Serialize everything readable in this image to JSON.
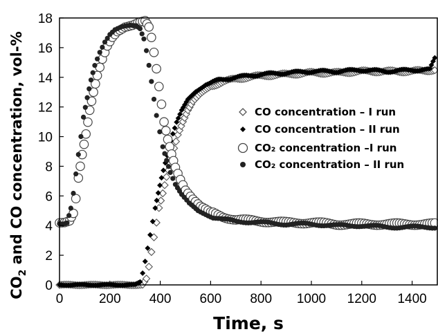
{
  "chart_data": {
    "type": "scatter",
    "title": "",
    "xlabel": "Time, s",
    "ylabel_main": "CO",
    "ylabel_sub": "2",
    "ylabel_rest": " and CO concentration, vol-%",
    "xlim": [
      0,
      1500
    ],
    "ylim": [
      0,
      18
    ],
    "xticks": [
      "0",
      "200",
      "400",
      "600",
      "800",
      "1000",
      "1200",
      "1400"
    ],
    "yticks": [
      "0",
      "2",
      "4",
      "6",
      "8",
      "10",
      "12",
      "14",
      "16",
      "18"
    ],
    "legend_position": "center-right",
    "series": [
      {
        "name": "CO concentration – I run",
        "marker": "open-diamond",
        "color": "#555555",
        "points": [
          [
            0,
            0
          ],
          [
            50,
            0
          ],
          [
            100,
            0
          ],
          [
            150,
            0
          ],
          [
            200,
            0
          ],
          [
            250,
            0
          ],
          [
            300,
            0
          ],
          [
            330,
            0
          ],
          [
            345,
            0.4
          ],
          [
            355,
            1.2
          ],
          [
            365,
            2.2
          ],
          [
            375,
            3.2
          ],
          [
            385,
            4.2
          ],
          [
            395,
            5.2
          ],
          [
            410,
            6.2
          ],
          [
            425,
            7.3
          ],
          [
            440,
            8.2
          ],
          [
            455,
            9.2
          ],
          [
            470,
            10.1
          ],
          [
            490,
            11
          ],
          [
            510,
            11.8
          ],
          [
            530,
            12.4
          ],
          [
            560,
            12.9
          ],
          [
            600,
            13.4
          ],
          [
            650,
            13.7
          ],
          [
            700,
            13.9
          ],
          [
            800,
            14.1
          ],
          [
            900,
            14.2
          ],
          [
            1000,
            14.3
          ],
          [
            1100,
            14.3
          ],
          [
            1200,
            14.4
          ],
          [
            1300,
            14.4
          ],
          [
            1400,
            14.4
          ],
          [
            1490,
            14.5
          ]
        ]
      },
      {
        "name": "CO concentration – II run",
        "marker": "filled-diamond",
        "color": "#000000",
        "points": [
          [
            0,
            0
          ],
          [
            50,
            0
          ],
          [
            100,
            0
          ],
          [
            150,
            0
          ],
          [
            200,
            0
          ],
          [
            250,
            0
          ],
          [
            300,
            0
          ],
          [
            320,
            0.2
          ],
          [
            330,
            0.8
          ],
          [
            340,
            1.6
          ],
          [
            350,
            2.5
          ],
          [
            360,
            3.4
          ],
          [
            370,
            4.3
          ],
          [
            380,
            5.2
          ],
          [
            392,
            6.2
          ],
          [
            405,
            7.2
          ],
          [
            420,
            8.2
          ],
          [
            435,
            9.2
          ],
          [
            450,
            10.2
          ],
          [
            465,
            11
          ],
          [
            485,
            11.8
          ],
          [
            510,
            12.5
          ],
          [
            540,
            13
          ],
          [
            580,
            13.5
          ],
          [
            630,
            13.8
          ],
          [
            700,
            14
          ],
          [
            800,
            14.2
          ],
          [
            900,
            14.3
          ],
          [
            1000,
            14.4
          ],
          [
            1100,
            14.4
          ],
          [
            1200,
            14.5
          ],
          [
            1300,
            14.4
          ],
          [
            1400,
            14.5
          ],
          [
            1470,
            14.5
          ],
          [
            1490,
            15.3
          ]
        ]
      },
      {
        "name": "CO₂ concentration –I run",
        "marker": "open-circle",
        "color": "#444444",
        "points": [
          [
            0,
            4.2
          ],
          [
            20,
            4.2
          ],
          [
            40,
            4.3
          ],
          [
            55,
            4.8
          ],
          [
            65,
            5.8
          ],
          [
            75,
            7.2
          ],
          [
            90,
            8.8
          ],
          [
            105,
            10.2
          ],
          [
            120,
            11.8
          ],
          [
            135,
            13
          ],
          [
            150,
            14.1
          ],
          [
            170,
            15.2
          ],
          [
            190,
            16.1
          ],
          [
            210,
            16.7
          ],
          [
            230,
            17.1
          ],
          [
            260,
            17.4
          ],
          [
            290,
            17.5
          ],
          [
            320,
            17.7
          ],
          [
            340,
            17.8
          ],
          [
            355,
            17.4
          ],
          [
            365,
            16.7
          ],
          [
            375,
            15.7
          ],
          [
            385,
            14.6
          ],
          [
            395,
            13.4
          ],
          [
            405,
            12.2
          ],
          [
            415,
            11
          ],
          [
            430,
            9.8
          ],
          [
            445,
            8.8
          ],
          [
            460,
            7.9
          ],
          [
            480,
            7.1
          ],
          [
            500,
            6.4
          ],
          [
            530,
            5.8
          ],
          [
            560,
            5.3
          ],
          [
            600,
            4.9
          ],
          [
            650,
            4.6
          ],
          [
            700,
            4.4
          ],
          [
            800,
            4.3
          ],
          [
            900,
            4.2
          ],
          [
            1000,
            4.2
          ],
          [
            1100,
            4.1
          ],
          [
            1200,
            4.1
          ],
          [
            1300,
            4.1
          ],
          [
            1400,
            4.1
          ],
          [
            1490,
            4.1
          ]
        ]
      },
      {
        "name": "CO₂ concentration – II run",
        "marker": "filled-circle",
        "color": "#222222",
        "points": [
          [
            0,
            4.1
          ],
          [
            15,
            4.1
          ],
          [
            30,
            4.2
          ],
          [
            45,
            5.2
          ],
          [
            55,
            6.2
          ],
          [
            65,
            7.5
          ],
          [
            75,
            8.8
          ],
          [
            85,
            10
          ],
          [
            95,
            11.3
          ],
          [
            110,
            12.6
          ],
          [
            125,
            13.8
          ],
          [
            140,
            14.8
          ],
          [
            160,
            15.7
          ],
          [
            180,
            16.4
          ],
          [
            200,
            16.9
          ],
          [
            220,
            17.2
          ],
          [
            250,
            17.4
          ],
          [
            280,
            17.5
          ],
          [
            305,
            17.5
          ],
          [
            320,
            17.3
          ],
          [
            335,
            16.6
          ],
          [
            345,
            15.8
          ],
          [
            355,
            14.8
          ],
          [
            365,
            13.7
          ],
          [
            375,
            12.5
          ],
          [
            385,
            11.4
          ],
          [
            398,
            10.3
          ],
          [
            410,
            9.3
          ],
          [
            425,
            8.4
          ],
          [
            440,
            7.6
          ],
          [
            460,
            6.8
          ],
          [
            485,
            6.1
          ],
          [
            515,
            5.5
          ],
          [
            550,
            5
          ],
          [
            600,
            4.6
          ],
          [
            650,
            4.4
          ],
          [
            700,
            4.3
          ],
          [
            800,
            4.2
          ],
          [
            900,
            4.1
          ],
          [
            1000,
            4.1
          ],
          [
            1100,
            4
          ],
          [
            1200,
            4
          ],
          [
            1300,
            3.9
          ],
          [
            1400,
            3.9
          ],
          [
            1490,
            3.9
          ]
        ]
      }
    ]
  }
}
